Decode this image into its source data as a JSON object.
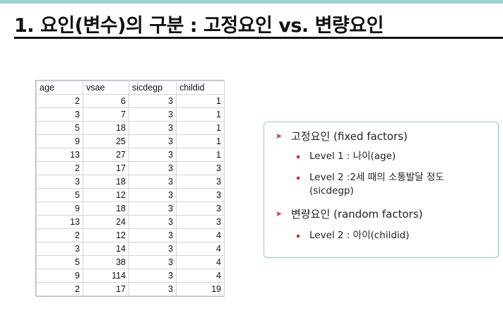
{
  "slide": {
    "title": "1. 요인(변수)의 구분 : 고정요인 vs. 변량요인"
  },
  "table": {
    "columns": [
      "age",
      "vsae",
      "sicdegp",
      "childid"
    ],
    "rows": [
      [
        "2",
        "6",
        "3",
        "1"
      ],
      [
        "3",
        "7",
        "3",
        "1"
      ],
      [
        "5",
        "18",
        "3",
        "1"
      ],
      [
        "9",
        "25",
        "3",
        "1"
      ],
      [
        "13",
        "27",
        "3",
        "1"
      ],
      [
        "2",
        "17",
        "3",
        "3"
      ],
      [
        "3",
        "18",
        "3",
        "3"
      ],
      [
        "5",
        "12",
        "3",
        "3"
      ],
      [
        "9",
        "18",
        "3",
        "3"
      ],
      [
        "13",
        "24",
        "3",
        "3"
      ],
      [
        "2",
        "12",
        "3",
        "4"
      ],
      [
        "3",
        "14",
        "3",
        "4"
      ],
      [
        "5",
        "38",
        "3",
        "4"
      ],
      [
        "9",
        "114",
        "3",
        "4"
      ],
      [
        "2",
        "17",
        "3",
        "19"
      ]
    ]
  },
  "factors": {
    "bullet_icon": "arrowhead-icon",
    "bullet_color": "#c0392b",
    "fixed_heading": "고정요인 (fixed factors)",
    "fixed_level1": "Level 1 : 나이(age)",
    "fixed_level2": "Level 2 :2세 때의 소통발달 정도(sicdegp)",
    "random_heading": "변량요인 (random factors)",
    "random_level2": "Level 2 : 아이(childid)"
  }
}
